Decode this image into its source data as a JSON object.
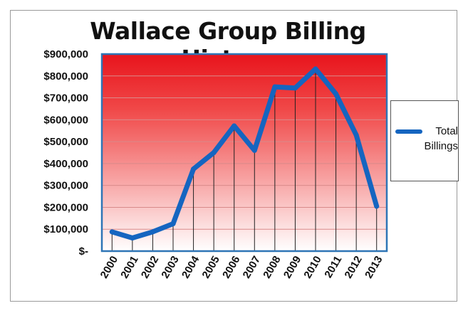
{
  "chart_data": {
    "type": "line",
    "title": "Wallace Group Billing History",
    "xlabel": "",
    "ylabel": "",
    "categories": [
      "2000",
      "2001",
      "2002",
      "2003",
      "2004",
      "2005",
      "2006",
      "2007",
      "2008",
      "2009",
      "2010",
      "2011",
      "2012",
      "2013"
    ],
    "series": [
      {
        "name": "Total Billings",
        "values": [
          88000,
          60000,
          88000,
          125000,
          375000,
          450000,
          572000,
          460000,
          750000,
          745000,
          832000,
          718000,
          530000,
          205000
        ],
        "color": "#1565c0"
      }
    ],
    "ylim": [
      0,
      900000
    ],
    "y_ticks": [
      0,
      100000,
      200000,
      300000,
      400000,
      500000,
      600000,
      700000,
      800000,
      900000
    ],
    "y_tick_labels": [
      "$-",
      "$100,000",
      "$200,000",
      "$300,000",
      "$400,000",
      "$500,000",
      "$600,000",
      "$700,000",
      "$800,000",
      "$900,000"
    ],
    "grid": true,
    "drop_lines": true,
    "legend_position": "right",
    "plot_background": "gradient red (top) to white (bottom)",
    "colors": {
      "line": "#1565c0",
      "gradient_top": "#e8141c",
      "gradient_bottom": "#ffffff",
      "border": "#2e75b6"
    }
  }
}
